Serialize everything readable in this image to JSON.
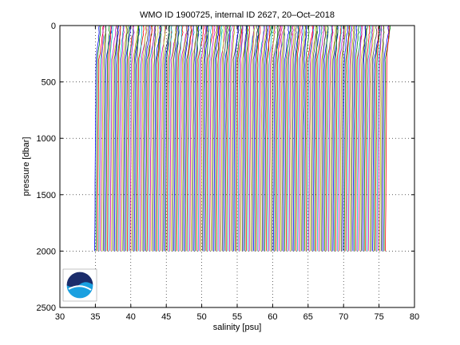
{
  "chart_data": {
    "type": "line",
    "title": "WMO ID 1900725, internal ID 2627, 20–Oct–2018",
    "xlabel": "salinity [psu]",
    "ylabel": "pressure [dbar]",
    "xlim": [
      30,
      80
    ],
    "ylim": [
      0,
      2500
    ],
    "y_reversed": true,
    "grid": "dotted",
    "x_ticks": [
      30,
      35,
      40,
      45,
      50,
      55,
      60,
      65,
      70,
      75,
      80
    ],
    "y_ticks": [
      0,
      500,
      1000,
      1500,
      2000,
      2500
    ],
    "profiles": {
      "count": 206,
      "offset_step_psu": 0.2,
      "base_salinity_deep_psu": 34.9,
      "max_pressure_dbar": 2000,
      "colors": [
        "#0000ff",
        "#008000",
        "#ff0000",
        "#00bfbf",
        "#bf00bf",
        "#bfbf00",
        "#404040"
      ]
    },
    "logo": "NOAA"
  }
}
